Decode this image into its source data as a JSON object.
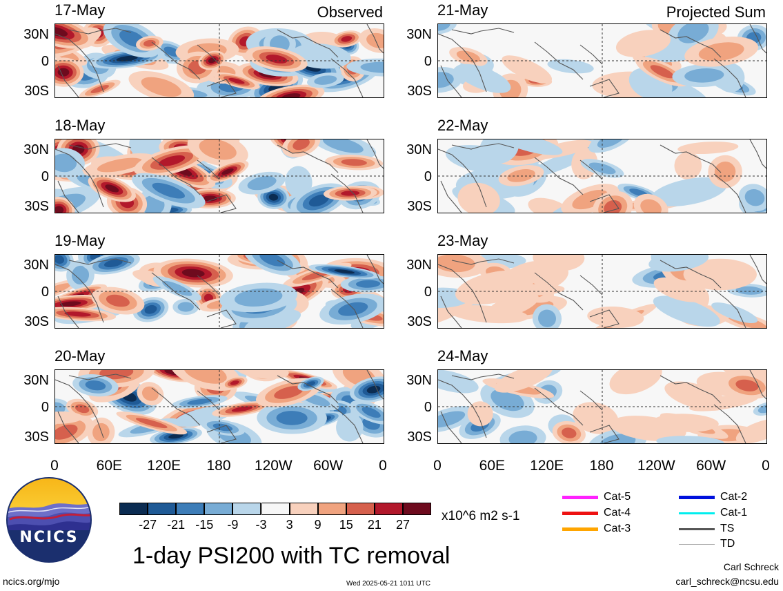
{
  "columns": [
    {
      "tag": "Observed",
      "dates": [
        "17-May",
        "18-May",
        "19-May",
        "20-May"
      ]
    },
    {
      "tag": "Projected Sum",
      "dates": [
        "21-May",
        "22-May",
        "23-May",
        "24-May"
      ]
    }
  ],
  "lat_labels": [
    "30N",
    "0",
    "30S"
  ],
  "lon_labels": [
    "0",
    "60E",
    "120E",
    "180",
    "120W",
    "60W",
    "0"
  ],
  "colorbar": {
    "ticks": [
      "-27",
      "-21",
      "-15",
      "-9",
      "-3",
      "3",
      "9",
      "15",
      "21",
      "27"
    ],
    "units": "x10^6 m2 s-1",
    "colors": [
      "#0b2c52",
      "#1f5a96",
      "#3d7db8",
      "#78acd5",
      "#b9d6ea",
      "#f7f7f7",
      "#f8d1bd",
      "#f0a37f",
      "#d6604d",
      "#b2182b",
      "#6e0b1e"
    ]
  },
  "tc_legend": [
    {
      "label": "Cat-5",
      "color": "#ff22ff",
      "weight": "heavy"
    },
    {
      "label": "Cat-4",
      "color": "#ee1111",
      "weight": "heavy"
    },
    {
      "label": "Cat-3",
      "color": "#ffa500",
      "weight": "heavy"
    },
    {
      "label": "Cat-2",
      "color": "#0011dd",
      "weight": "heavy"
    },
    {
      "label": "Cat-1",
      "color": "#00eeee",
      "weight": "medium"
    },
    {
      "label": "TS",
      "color": "#555555",
      "weight": "medium"
    },
    {
      "label": "TD",
      "color": "#aaaaaa",
      "weight": "light"
    }
  ],
  "logo_text": "NCICS",
  "main_title": "1-day PSI200 with TC removal",
  "website": "ncics.org/mjo",
  "timestamp": "Wed 2025-05-21 1011 UTC",
  "author": "Carl Schreck",
  "email": "carl_schreck@ncsu.edu"
}
